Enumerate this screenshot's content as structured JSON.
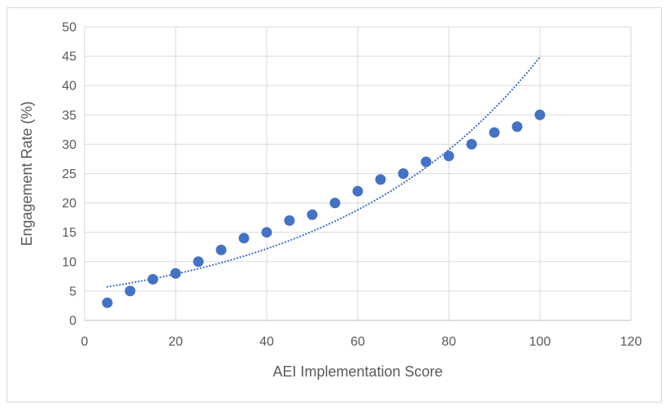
{
  "chart_data": {
    "type": "scatter",
    "title": "",
    "xlabel": "AEI Implementation Score",
    "ylabel": "Engagement Rate (%)",
    "x": [
      5,
      10,
      15,
      20,
      25,
      30,
      35,
      40,
      45,
      50,
      55,
      60,
      65,
      70,
      75,
      80,
      85,
      90,
      95,
      100
    ],
    "y": [
      3,
      5,
      7,
      8,
      10,
      12,
      14,
      15,
      17,
      18,
      20,
      22,
      24,
      25,
      27,
      28,
      30,
      32,
      33,
      35
    ],
    "xlim": [
      0,
      120
    ],
    "ylim": [
      0,
      50
    ],
    "x_ticks": [
      0,
      20,
      40,
      60,
      80,
      100,
      120
    ],
    "y_ticks": [
      0,
      5,
      10,
      15,
      20,
      25,
      30,
      35,
      40,
      45,
      50
    ],
    "grid": true,
    "legend": false,
    "trendline": {
      "type": "exponential",
      "a": 5.12,
      "b": 0.0217,
      "x_start": 5,
      "x_end": 100,
      "line_style": "dotted"
    },
    "colors": {
      "marker": "#4472C4",
      "trendline": "#4472C4",
      "gridline": "#D9D9D9",
      "axis_line": "#BFBFBF",
      "axis_text": "#595959",
      "frame_border": "#D9D9D9"
    }
  }
}
